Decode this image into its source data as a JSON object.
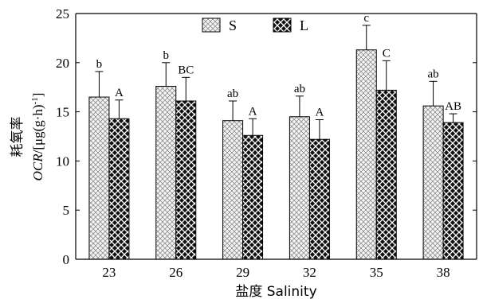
{
  "chart_data": {
    "type": "bar",
    "categories": [
      "23",
      "26",
      "29",
      "32",
      "35",
      "38"
    ],
    "series": [
      {
        "name": "S",
        "values": [
          16.5,
          17.6,
          14.1,
          14.5,
          21.3,
          15.6
        ],
        "errors": [
          2.6,
          2.4,
          2.0,
          2.1,
          2.5,
          2.5
        ],
        "labels": [
          "b",
          "b",
          "ab",
          "ab",
          "c",
          "ab"
        ],
        "color": "#d8d8d8",
        "pattern": "light-check"
      },
      {
        "name": "L",
        "values": [
          14.3,
          16.1,
          12.6,
          12.2,
          17.2,
          13.9
        ],
        "errors": [
          1.9,
          2.4,
          1.7,
          2.0,
          3.0,
          0.9
        ],
        "labels": [
          "A",
          "BC",
          "A",
          "A",
          "C",
          "AB"
        ],
        "color": "#111111",
        "pattern": "dark-check"
      }
    ],
    "xlabel": "盐度 Salinity",
    "ylabel_cn": "耗氧率",
    "ylabel_var": "OCR",
    "ylabel_unit": "/[μg(g·h)",
    "ylabel_exp": "-1",
    "ylabel_close": "]",
    "ylim": [
      0,
      25
    ],
    "yticks": [
      0,
      5,
      10,
      15,
      20,
      25
    ],
    "legend_position": "top-center",
    "grid": false
  }
}
